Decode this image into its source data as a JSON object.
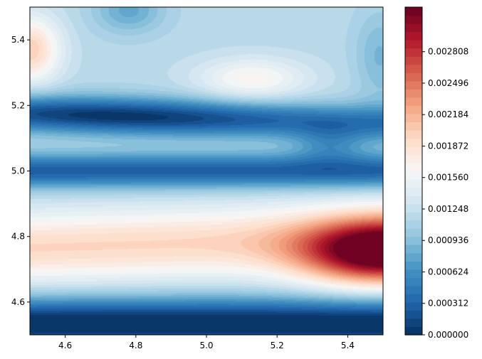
{
  "chart_data": {
    "type": "heatmap",
    "subtype": "filled-contour",
    "title": "",
    "xlabel": "",
    "ylabel": "",
    "xlim": [
      4.5,
      5.5
    ],
    "ylim": [
      4.5,
      5.5
    ],
    "x_ticks": [
      "4.6",
      "4.8",
      "5.0",
      "5.2",
      "5.4"
    ],
    "y_ticks": [
      "4.6",
      "4.8",
      "5.0",
      "5.2",
      "5.4"
    ],
    "colormap": "RdBu_r",
    "colormap_stops": [
      "#053061",
      "#2166ac",
      "#4393c3",
      "#92c5de",
      "#d1e5f0",
      "#f7f7f7",
      "#fddbc7",
      "#f4a582",
      "#d6604d",
      "#b2182b",
      "#67001f"
    ],
    "value_range": [
      0.0,
      0.00325
    ],
    "levels": 40,
    "colorbar_ticks": [
      "0.000000",
      "0.000312",
      "0.000624",
      "0.000936",
      "0.001248",
      "0.001560",
      "0.001872",
      "0.002184",
      "0.002496",
      "0.002808"
    ],
    "features": [
      {
        "kind": "band-maximum",
        "y": 4.78,
        "value": 0.00195,
        "x_range": [
          4.6,
          5.2
        ]
      },
      {
        "kind": "peak",
        "x": 5.5,
        "y": 4.75,
        "value": 0.00325
      },
      {
        "kind": "trough-band",
        "y": 5.16,
        "value": 5e-05
      },
      {
        "kind": "trough-band",
        "y": 4.99,
        "value": 0.0002
      },
      {
        "kind": "trough-band",
        "y": 4.54,
        "value": 5e-05
      },
      {
        "kind": "local-high",
        "x": 5.12,
        "y": 5.28,
        "value": 0.0018
      },
      {
        "kind": "local-high",
        "x": 4.5,
        "y": 5.36,
        "value": 0.0021
      }
    ]
  }
}
